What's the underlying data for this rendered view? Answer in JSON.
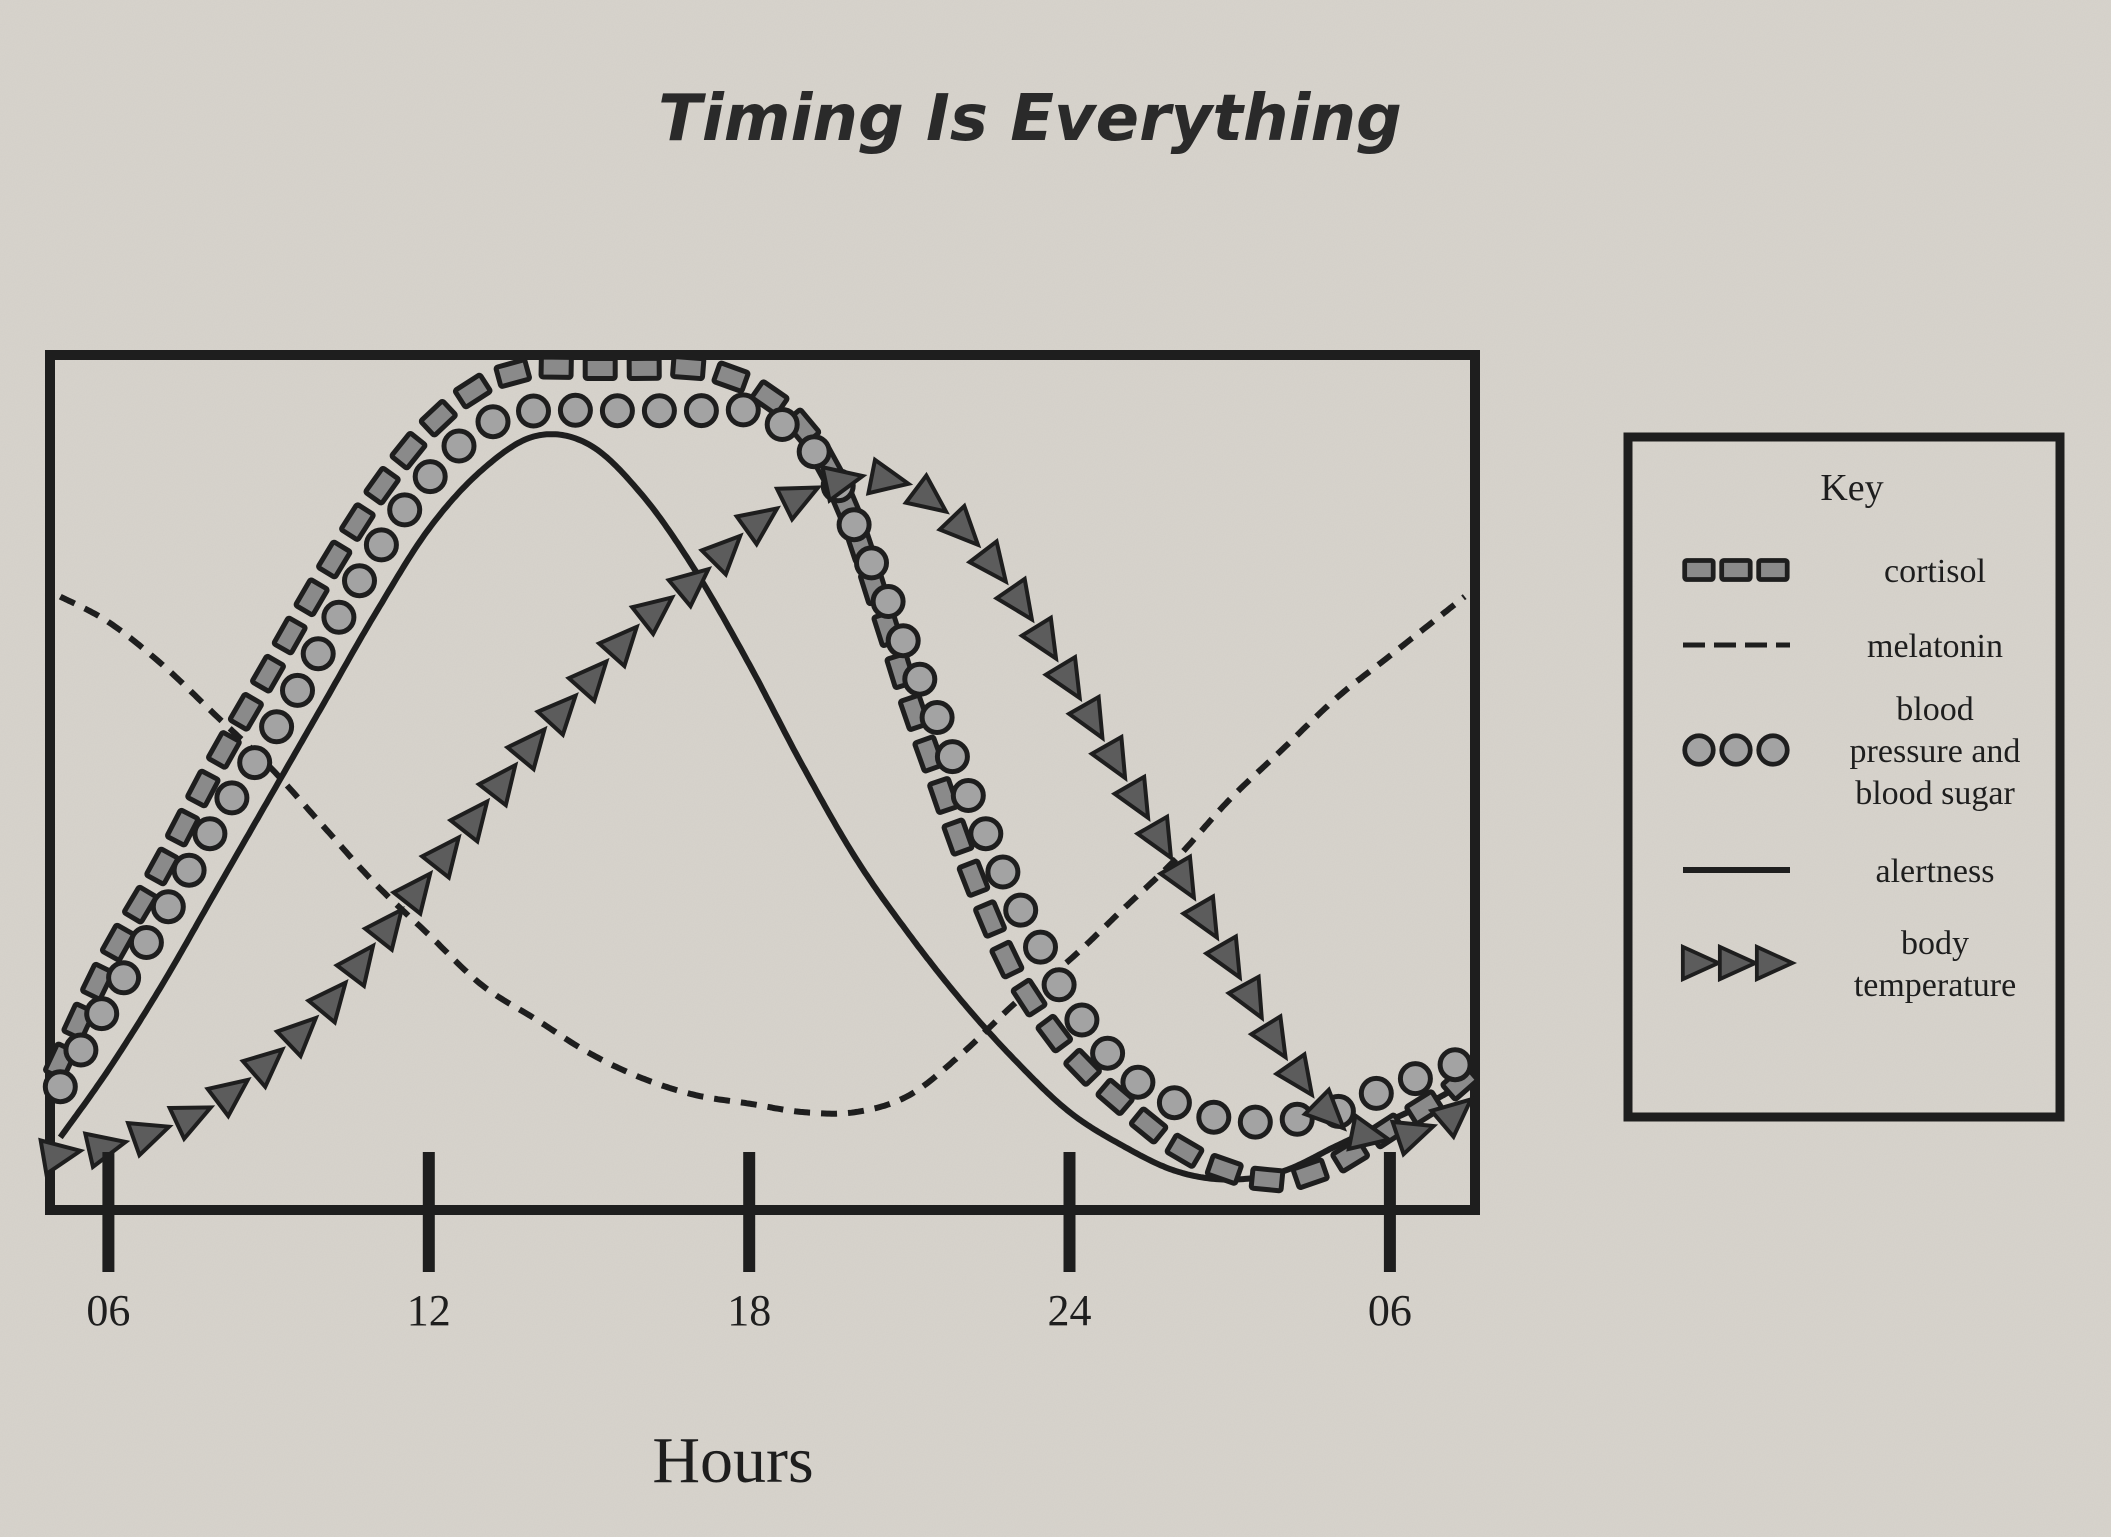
{
  "chart_data": {
    "type": "line",
    "title": "Timing Is Everything",
    "xlabel": "Hours",
    "ylabel": "",
    "x_tick_labels": [
      "06",
      "12",
      "18",
      "24",
      "06"
    ],
    "x_tick_hours": [
      6,
      12,
      18,
      24,
      30
    ],
    "xlim": [
      5,
      31.5
    ],
    "ylim": [
      0,
      1
    ],
    "y_axis_values_shown": false,
    "grid": false,
    "legend_position": "right",
    "legend_title": "Key",
    "series": [
      {
        "name": "cortisol",
        "marker": "square",
        "color": "#8a8a8a",
        "x": [
          5.1,
          6,
          7,
          8,
          9,
          10,
          11,
          12,
          13,
          14,
          15,
          16,
          17,
          18,
          19,
          19.8,
          20.5,
          21,
          21.5,
          22,
          22.5,
          23,
          24,
          25,
          26,
          27,
          28,
          29,
          30,
          31,
          31.4
        ],
        "y": [
          0.17,
          0.29,
          0.4,
          0.52,
          0.63,
          0.74,
          0.84,
          0.92,
          0.97,
          0.99,
          0.99,
          0.99,
          0.99,
          0.97,
          0.92,
          0.83,
          0.7,
          0.6,
          0.51,
          0.42,
          0.34,
          0.27,
          0.18,
          0.12,
          0.07,
          0.04,
          0.03,
          0.05,
          0.09,
          0.13,
          0.15
        ]
      },
      {
        "name": "melatonin",
        "marker": "dashed",
        "color": "#222222",
        "x": [
          5.1,
          6,
          7,
          8,
          9,
          10,
          11,
          12,
          13,
          14,
          15,
          16,
          17,
          18,
          19,
          20,
          21,
          22,
          23,
          24,
          25,
          26,
          27,
          28,
          29,
          30,
          31,
          31.4
        ],
        "y": [
          0.72,
          0.69,
          0.64,
          0.58,
          0.52,
          0.45,
          0.38,
          0.32,
          0.26,
          0.22,
          0.18,
          0.15,
          0.13,
          0.12,
          0.11,
          0.11,
          0.13,
          0.18,
          0.24,
          0.29,
          0.35,
          0.41,
          0.48,
          0.54,
          0.6,
          0.65,
          0.7,
          0.72
        ]
      },
      {
        "name": "blood pressure and blood sugar",
        "marker": "circle",
        "color": "#9e9e9e",
        "x": [
          5.1,
          6,
          7,
          8,
          9,
          10,
          11,
          12,
          13,
          14,
          15,
          16,
          17,
          18,
          18.7,
          19.5,
          20,
          20.5,
          21,
          21.5,
          22,
          22.5,
          23,
          23.5,
          24,
          25,
          26,
          27,
          28,
          29,
          30,
          30.5,
          31.4
        ],
        "y": [
          0.14,
          0.24,
          0.34,
          0.45,
          0.55,
          0.66,
          0.77,
          0.86,
          0.92,
          0.94,
          0.94,
          0.94,
          0.94,
          0.94,
          0.92,
          0.87,
          0.8,
          0.73,
          0.65,
          0.58,
          0.5,
          0.43,
          0.36,
          0.3,
          0.24,
          0.16,
          0.12,
          0.1,
          0.1,
          0.11,
          0.14,
          0.15,
          0.17
        ]
      },
      {
        "name": "alertness",
        "marker": "solid",
        "color": "#1e1e1e",
        "x": [
          5.1,
          6,
          7,
          8,
          9,
          10,
          11,
          12,
          13,
          14,
          15,
          16,
          17,
          18,
          19,
          20,
          21,
          22,
          23,
          24,
          25,
          26,
          27,
          28,
          29,
          30,
          31,
          31.4
        ],
        "y": [
          0.08,
          0.16,
          0.26,
          0.37,
          0.48,
          0.59,
          0.7,
          0.8,
          0.87,
          0.91,
          0.9,
          0.84,
          0.75,
          0.64,
          0.52,
          0.41,
          0.32,
          0.24,
          0.17,
          0.11,
          0.07,
          0.04,
          0.03,
          0.04,
          0.07,
          0.1,
          0.13,
          0.15
        ]
      },
      {
        "name": "body temperature",
        "marker": "triangle",
        "color": "#5c5c5c",
        "x": [
          5.1,
          6,
          7,
          8,
          9,
          10,
          11,
          12,
          13,
          14,
          15,
          16,
          17,
          18,
          19,
          20,
          21,
          22,
          23,
          24,
          25,
          26,
          27,
          28,
          29,
          30,
          31,
          31.4
        ],
        "y": [
          0.06,
          0.07,
          0.09,
          0.12,
          0.17,
          0.23,
          0.31,
          0.39,
          0.47,
          0.55,
          0.62,
          0.69,
          0.74,
          0.8,
          0.84,
          0.86,
          0.85,
          0.8,
          0.72,
          0.62,
          0.51,
          0.4,
          0.29,
          0.18,
          0.1,
          0.08,
          0.1,
          0.12
        ]
      }
    ]
  }
}
